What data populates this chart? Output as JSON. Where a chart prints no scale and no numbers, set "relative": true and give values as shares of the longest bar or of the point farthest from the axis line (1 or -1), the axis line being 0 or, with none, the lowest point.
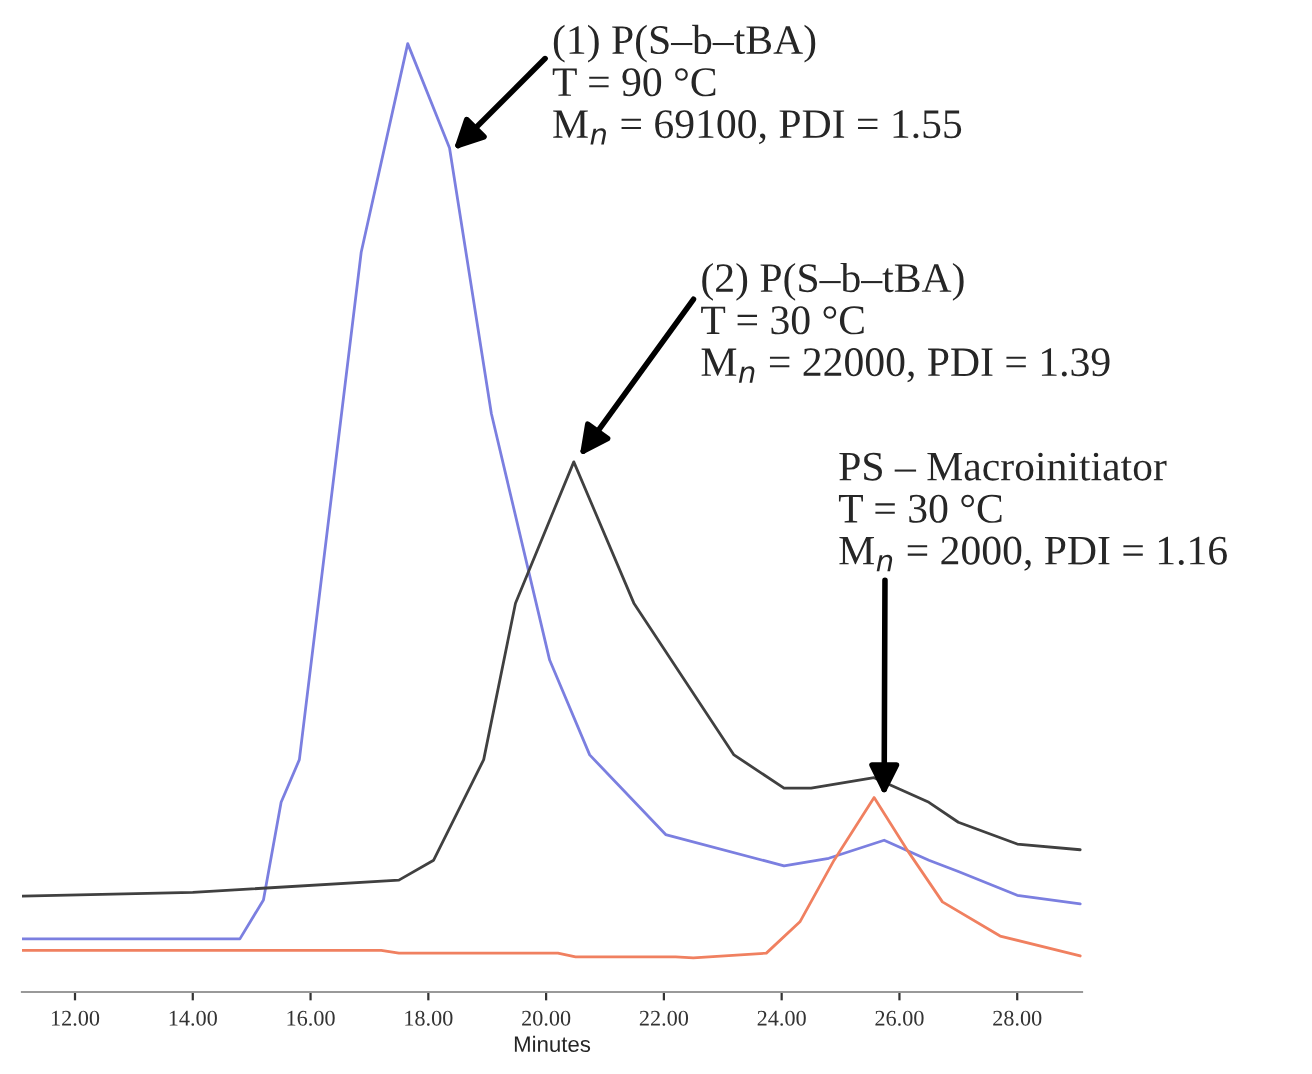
{
  "chart_data": {
    "type": "line",
    "relative": true,
    "xlabel": "Minutes",
    "xlim": [
      11.1,
      29.1
    ],
    "xticks": [
      {
        "value": 12,
        "label": "12.00"
      },
      {
        "value": 14,
        "label": "14.00"
      },
      {
        "value": 16,
        "label": "16.00"
      },
      {
        "value": 18,
        "label": "18.00"
      },
      {
        "value": 20,
        "label": "20.00"
      },
      {
        "value": 22,
        "label": "22.00"
      },
      {
        "value": 24,
        "label": "24.00"
      },
      {
        "value": 26,
        "label": "26.00"
      },
      {
        "value": 28,
        "label": "28.00"
      }
    ],
    "grid": false,
    "legend": false,
    "series": [
      {
        "color": "#7b7fe0",
        "x": [
          11.1,
          14.8,
          15.2,
          15.5,
          15.81,
          16.35,
          16.86,
          17.65,
          18.36,
          19.07,
          20.06,
          20.74,
          22.03,
          24.04,
          24.8,
          25.74,
          26.5,
          27.0,
          28.0,
          29.07
        ],
        "values": [
          0.056,
          0.056,
          0.097,
          0.2,
          0.245,
          0.52,
          0.78,
          1.0,
          0.89,
          0.61,
          0.35,
          0.25,
          0.166,
          0.133,
          0.141,
          0.16,
          0.139,
          0.127,
          0.102,
          0.093
        ]
      },
      {
        "color": "#404040",
        "x": [
          11.1,
          14.0,
          17.5,
          18.09,
          18.94,
          19.48,
          20.47,
          21.49,
          23.19,
          24.04,
          24.5,
          25.57,
          26.5,
          27.0,
          28.0,
          29.07
        ],
        "values": [
          0.101,
          0.105,
          0.118,
          0.139,
          0.245,
          0.41,
          0.559,
          0.41,
          0.25,
          0.215,
          0.215,
          0.226,
          0.2,
          0.179,
          0.156,
          0.15
        ]
      },
      {
        "color": "#f08060",
        "x": [
          11.1,
          17.2,
          17.5,
          20.2,
          20.5,
          22.2,
          22.5,
          23.74,
          24.31,
          24.89,
          25.57,
          26.15,
          26.73,
          27.71,
          29.07
        ],
        "values": [
          0.044,
          0.044,
          0.041,
          0.041,
          0.037,
          0.037,
          0.036,
          0.041,
          0.074,
          0.139,
          0.205,
          0.148,
          0.095,
          0.059,
          0.038
        ]
      }
    ],
    "annotations": [
      {
        "text": "(1) P(S–b–tBA)\nT = 90 °C\nM$_{n}$ = 69100, PDI = 1.55",
        "x": 18.43,
        "y": 0.888
      },
      {
        "text": "(2) P(S–b–tBA)\nT = 30 °C\nM$_{n}$ = 22000, PDI = 1.39",
        "x": 20.57,
        "y": 0.565
      },
      {
        "text": "PS – Macroinitiator\nT = 30 °C\nM$_{n}$ = 2000, PDI = 1.16",
        "x": 25.74,
        "y": 0.207
      }
    ]
  }
}
